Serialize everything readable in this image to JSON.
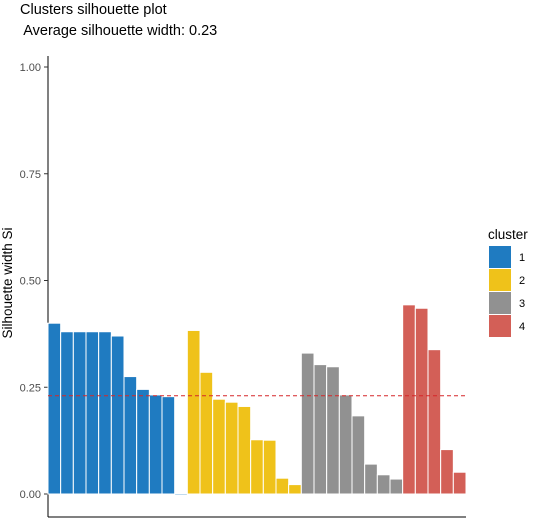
{
  "chart_data": {
    "type": "bar",
    "title": "Clusters silhouette plot",
    "subtitle": " Average silhouette width: 0.23",
    "xlabel": "",
    "ylabel": "Silhouette width Si",
    "ylim": [
      0,
      1
    ],
    "yticks": [
      0,
      0.25,
      0.5,
      0.75,
      1
    ],
    "ytick_labels": [
      "0.00",
      "0.25",
      "0.50",
      "0.75",
      "1.00"
    ],
    "grid": false,
    "reference_line": {
      "value": 0.23,
      "style": "dashed",
      "color": "#d62728"
    },
    "legend": {
      "title": "cluster",
      "position": "right",
      "entries": [
        {
          "label": "1",
          "color": "#1f7bc1"
        },
        {
          "label": "2",
          "color": "#efc21a"
        },
        {
          "label": "3",
          "color": "#919191"
        },
        {
          "label": "4",
          "color": "#d35f57"
        }
      ]
    },
    "series": [
      {
        "cluster": "1",
        "color": "#1f7bc1",
        "values": [
          0.4,
          0.38,
          0.38,
          0.38,
          0.38,
          0.37,
          0.275,
          0.245,
          0.232,
          0.228,
          -0.003
        ]
      },
      {
        "cluster": "2",
        "color": "#efc21a",
        "values": [
          0.383,
          0.285,
          0.222,
          0.215,
          0.205,
          0.127,
          0.126,
          0.037,
          0.022
        ]
      },
      {
        "cluster": "3",
        "color": "#919191",
        "values": [
          0.33,
          0.303,
          0.298,
          0.232,
          0.183,
          0.07,
          0.045,
          0.035
        ]
      },
      {
        "cluster": "4",
        "color": "#d35f57",
        "values": [
          0.443,
          0.435,
          0.338,
          0.104,
          0.051
        ]
      }
    ]
  }
}
